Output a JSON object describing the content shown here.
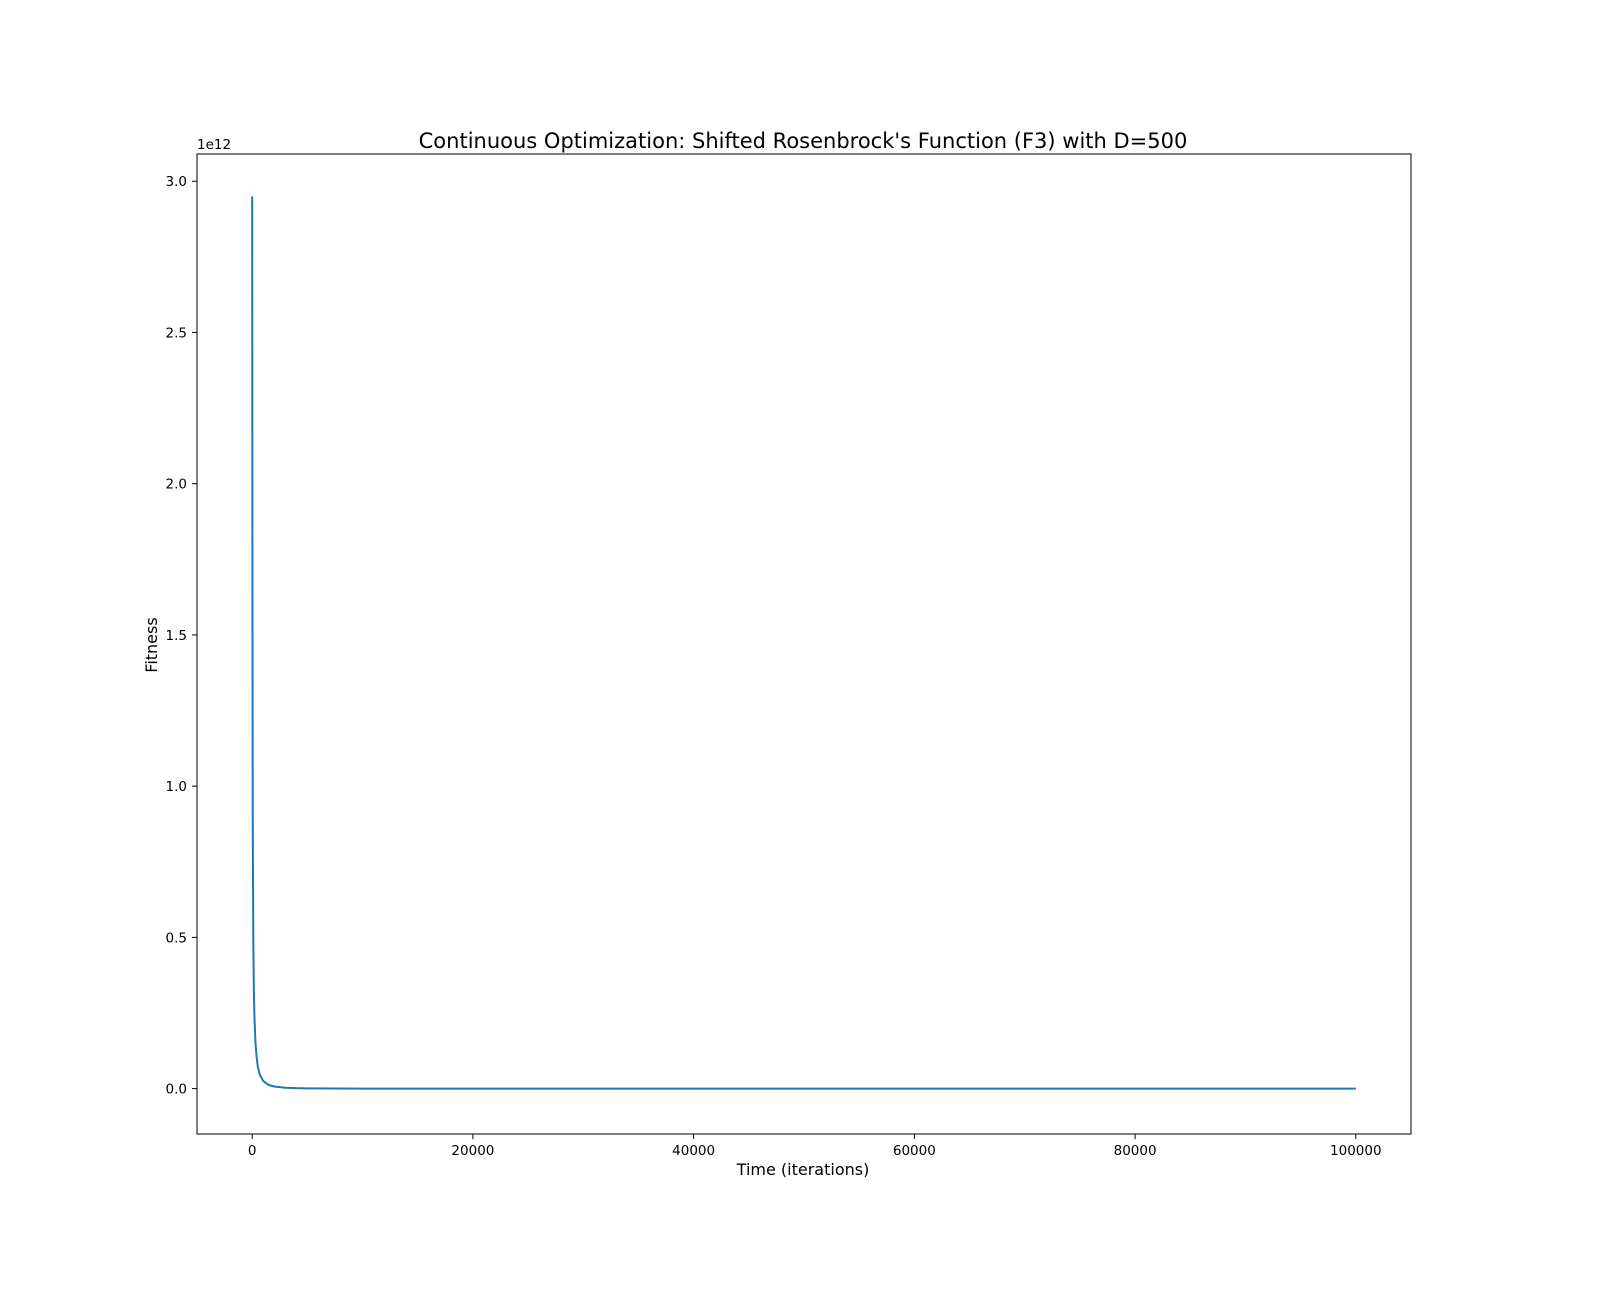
{
  "chart_data": {
    "type": "line",
    "title": "Continuous Optimization: Shifted Rosenbrock's Function (F3) with D=500",
    "xlabel": "Time (iterations)",
    "ylabel": "Fitness",
    "y_offset_label": "1e12",
    "y_scale_factor": 1000000000000,
    "xlim": [
      -5000,
      105000
    ],
    "ylim": [
      -150000000000,
      3090000000000
    ],
    "x_ticks": [
      0,
      20000,
      40000,
      60000,
      80000,
      100000
    ],
    "x_tick_labels": [
      "0",
      "20000",
      "40000",
      "60000",
      "80000",
      "100000"
    ],
    "y_ticks": [
      0,
      500000000000,
      1000000000000,
      1500000000000,
      2000000000000,
      2500000000000,
      3000000000000
    ],
    "y_tick_labels": [
      "0.0",
      "0.5",
      "1.0",
      "1.5",
      "2.0",
      "2.5",
      "3.0"
    ],
    "grid": false,
    "series": [
      {
        "color": "#1f77b4",
        "x": [
          0,
          20,
          50,
          100,
          150,
          200,
          300,
          400,
          500,
          700,
          1000,
          1500,
          2000,
          3000,
          4000,
          5000,
          10000,
          20000,
          40000,
          60000,
          80000,
          100000
        ],
        "y": [
          2950000000000,
          1800000000000,
          900000000000,
          500000000000,
          330000000000,
          240000000000,
          150000000000,
          105000000000,
          75000000000,
          45000000000,
          25000000000,
          12000000000,
          7000000000,
          3000000000,
          1500000000,
          800000000,
          200000000,
          60000000,
          20000000,
          10000000,
          6000000,
          4000000
        ]
      }
    ]
  }
}
